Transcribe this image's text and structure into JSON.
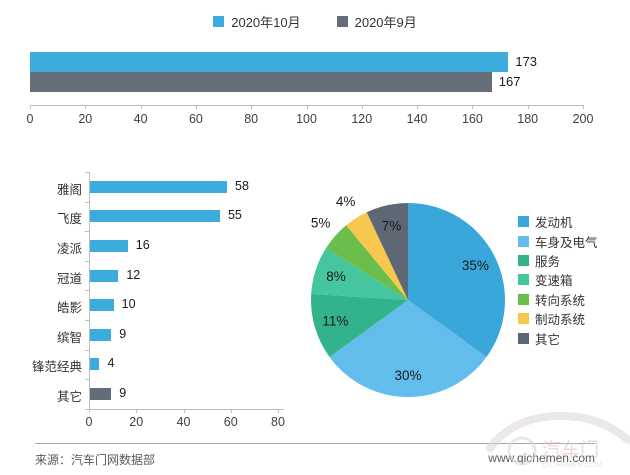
{
  "chart_data": [
    {
      "id": "monthly-total-comparison",
      "type": "bar",
      "orientation": "horizontal",
      "series": [
        {
          "name": "2020年10月",
          "value": 173,
          "color": "#3bacdb"
        },
        {
          "name": "2020年9月",
          "value": 167,
          "color": "#656d78"
        }
      ],
      "xlim": [
        0,
        200
      ],
      "xticks": [
        0,
        20,
        40,
        60,
        80,
        100,
        120,
        140,
        160,
        180,
        200
      ],
      "grid": false,
      "data_labels": true,
      "legend_position": "top"
    },
    {
      "id": "model-bar-chart",
      "type": "bar",
      "orientation": "horizontal",
      "categories": [
        "雅阁",
        "飞度",
        "凌派",
        "冠道",
        "皓影",
        "缤智",
        "锋范经典",
        "其它"
      ],
      "values": [
        58,
        55,
        16,
        12,
        10,
        9,
        4,
        9
      ],
      "bar_colors": [
        "#3bacdb",
        "#3bacdb",
        "#3bacdb",
        "#3bacdb",
        "#3bacdb",
        "#3bacdb",
        "#3bacdb",
        "#636c78"
      ],
      "xlim": [
        0,
        80
      ],
      "xticks": [
        0,
        20,
        40,
        60,
        80
      ],
      "grid": false,
      "data_labels": true
    },
    {
      "id": "category-pie-chart",
      "type": "pie",
      "labels": [
        "发动机",
        "车身及电气",
        "服务",
        "变速箱",
        "转向系统",
        "制动系统",
        "其它"
      ],
      "values": [
        35,
        30,
        11,
        8,
        5,
        4,
        7
      ],
      "percent_labels": [
        "35%",
        "30%",
        "11%",
        "8%",
        "5%",
        "4%",
        "7%"
      ],
      "colors": [
        "#3aa7da",
        "#62bdec",
        "#33b38b",
        "#46c69e",
        "#6cbe4c",
        "#f8c74f",
        "#5e6874"
      ],
      "start_angle_deg": 0,
      "clockwise": true,
      "legend_position": "right"
    }
  ],
  "footer": {
    "source": "来源：汽车门网数据部",
    "website": "www.qichemen.com"
  },
  "watermark": {
    "text": "汽车门",
    "subtext": "QICHEMEN.COM"
  }
}
